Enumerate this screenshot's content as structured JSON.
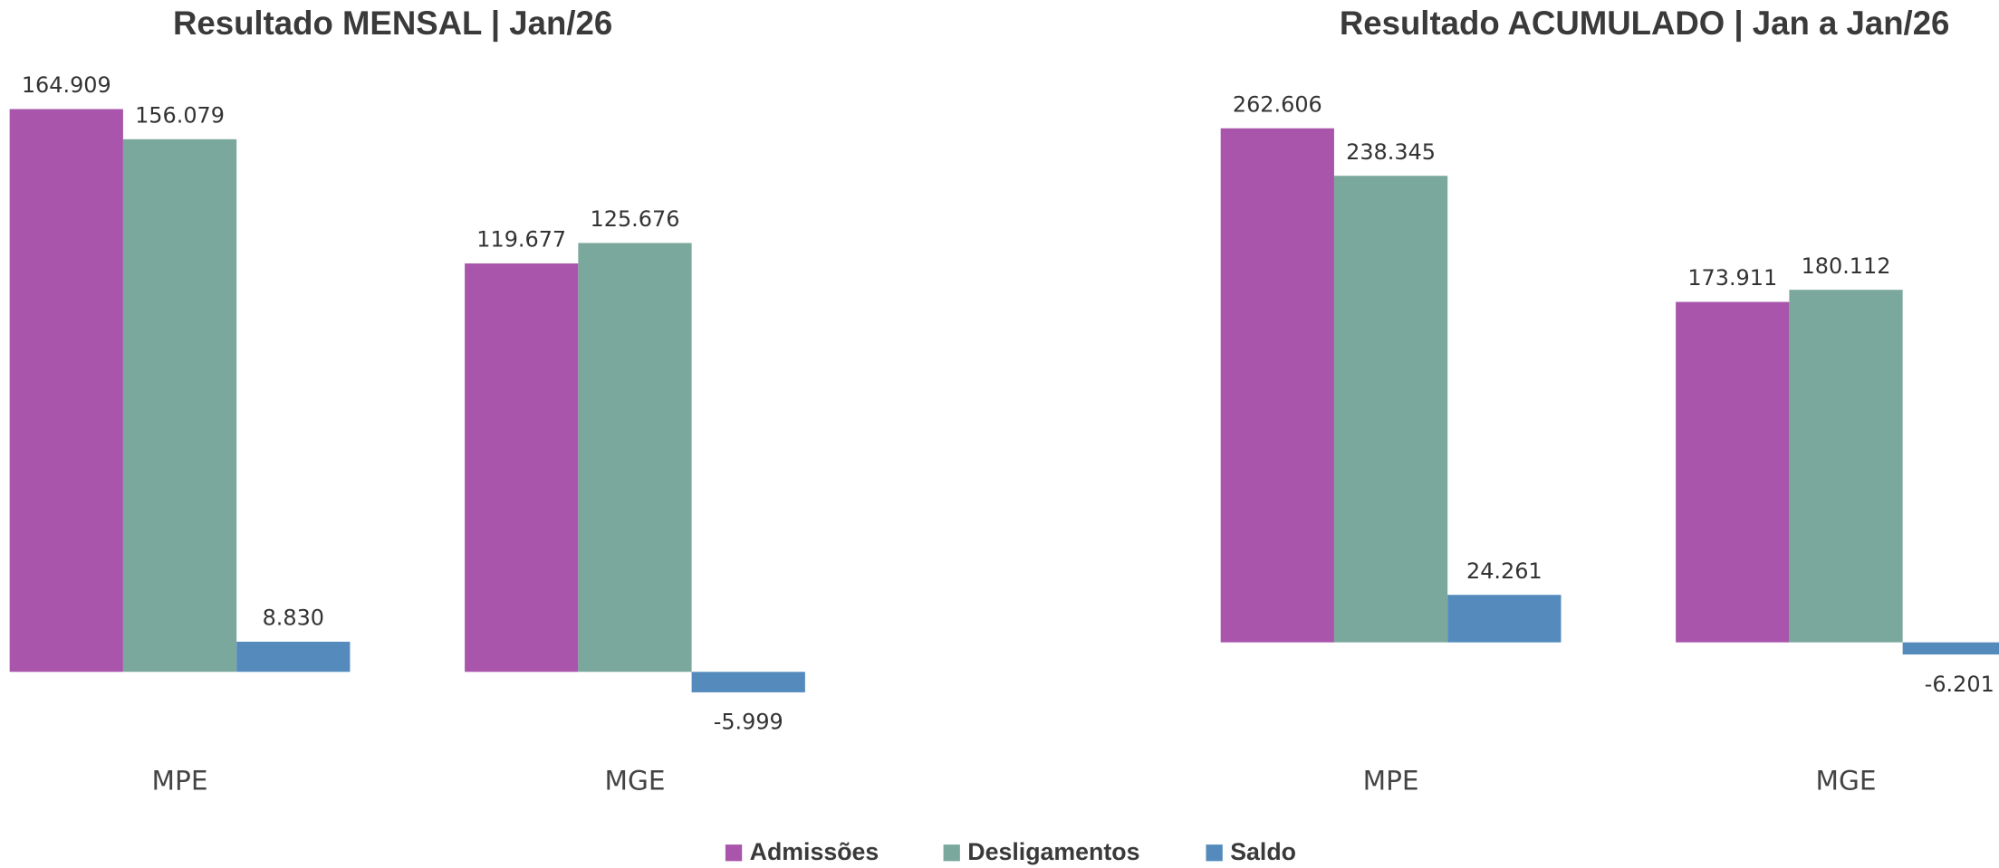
{
  "chart_data": [
    {
      "type": "bar",
      "title": "Resultado MENSAL | Jan/26",
      "categories": [
        "MPE",
        "MGE"
      ],
      "series": [
        {
          "name": "Admissões",
          "color": "#a855ab",
          "values": [
            164909,
            119677
          ],
          "value_labels": [
            "164.909",
            "119.677"
          ]
        },
        {
          "name": "Desligamentos",
          "color": "#7ba89d",
          "values": [
            156079,
            125676
          ],
          "value_labels": [
            "156.079",
            "125.676"
          ]
        },
        {
          "name": "Saldo",
          "color": "#548bbc",
          "values": [
            8830,
            -5999
          ],
          "value_labels": [
            "8.830",
            "-5.999"
          ]
        }
      ],
      "ylim": [
        -20000,
        170000
      ]
    },
    {
      "type": "bar",
      "title": "Resultado ACUMULADO | Jan a Jan/26",
      "categories": [
        "MPE",
        "MGE"
      ],
      "series": [
        {
          "name": "Admissões",
          "color": "#a855ab",
          "values": [
            262606,
            173911
          ],
          "value_labels": [
            "262.606",
            "173.911"
          ]
        },
        {
          "name": "Desligamentos",
          "color": "#7ba89d",
          "values": [
            238345,
            180112
          ],
          "value_labels": [
            "238.345",
            "180.112"
          ]
        },
        {
          "name": "Saldo",
          "color": "#548bbc",
          "values": [
            24261,
            -6201
          ],
          "value_labels": [
            "24.261",
            "-6.201"
          ]
        }
      ],
      "ylim": [
        -20000,
        280000
      ]
    }
  ]
}
